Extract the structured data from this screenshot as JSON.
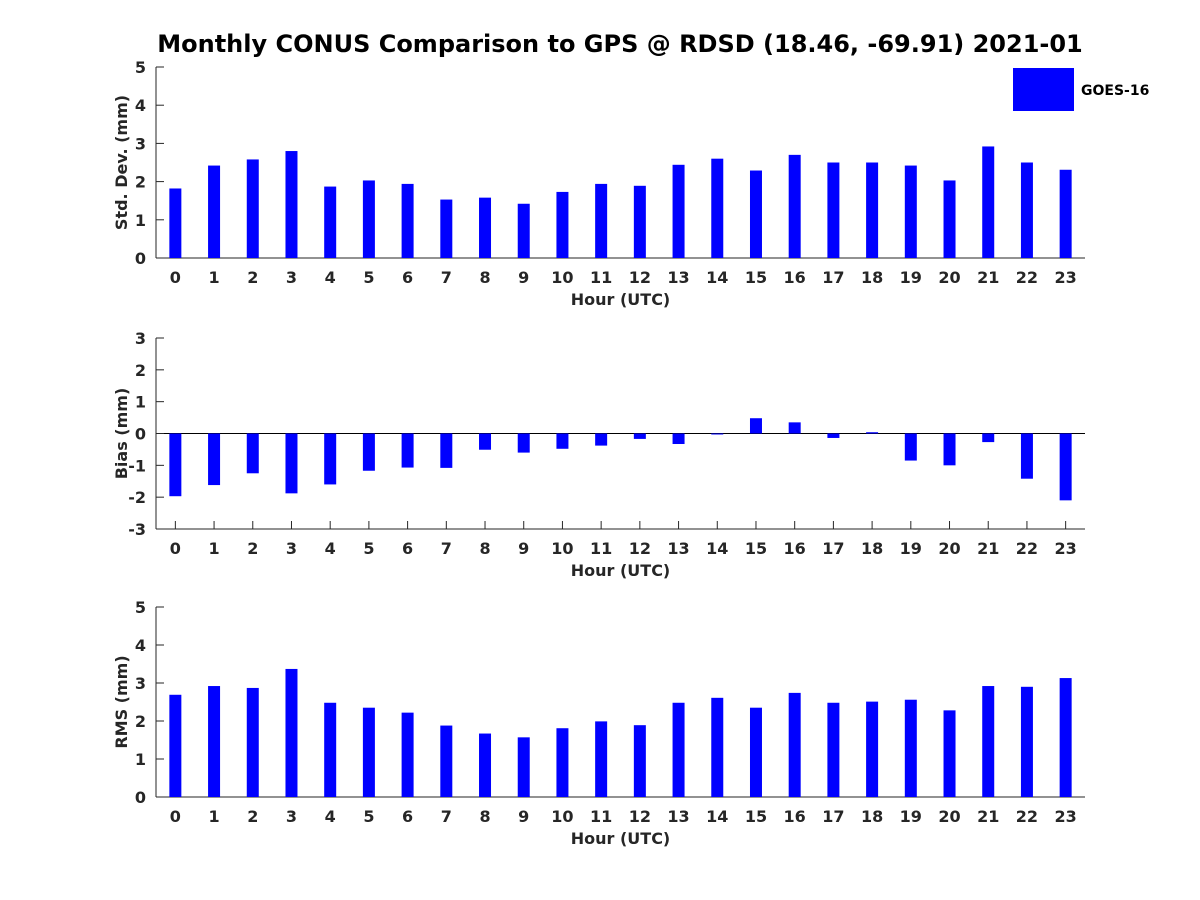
{
  "title": "Monthly CONUS Comparison to GPS @ RDSD (18.46, -69.91) 2021-01",
  "legend": {
    "label": "GOES-16",
    "color": "#0000ff",
    "placement": "top-right"
  },
  "chart_data": [
    {
      "type": "bar",
      "title": "",
      "xlabel": "Hour (UTC)",
      "ylabel": "Std. Dev. (mm)",
      "ylim": [
        0,
        5
      ],
      "yticks": [
        0,
        1,
        2,
        3,
        4,
        5
      ],
      "categories": [
        "0",
        "1",
        "2",
        "3",
        "4",
        "5",
        "6",
        "7",
        "8",
        "9",
        "10",
        "11",
        "12",
        "13",
        "14",
        "15",
        "16",
        "17",
        "18",
        "19",
        "20",
        "21",
        "22",
        "23"
      ],
      "series": [
        {
          "name": "GOES-16",
          "color": "#0000ff",
          "values": [
            1.82,
            2.42,
            2.58,
            2.8,
            1.87,
            2.03,
            1.94,
            1.53,
            1.58,
            1.42,
            1.73,
            1.94,
            1.89,
            2.44,
            2.6,
            2.29,
            2.7,
            2.5,
            2.5,
            2.42,
            2.03,
            2.92,
            2.5,
            2.31
          ]
        }
      ],
      "grid": false
    },
    {
      "type": "bar",
      "title": "",
      "xlabel": "Hour (UTC)",
      "ylabel": "Bias (mm)",
      "ylim": [
        -3,
        3
      ],
      "yticks": [
        -3,
        -2,
        -1,
        0,
        1,
        2,
        3
      ],
      "categories": [
        "0",
        "1",
        "2",
        "3",
        "4",
        "5",
        "6",
        "7",
        "8",
        "9",
        "10",
        "11",
        "12",
        "13",
        "14",
        "15",
        "16",
        "17",
        "18",
        "19",
        "20",
        "21",
        "22",
        "23"
      ],
      "series": [
        {
          "name": "GOES-16",
          "color": "#0000ff",
          "values": [
            -1.97,
            -1.62,
            -1.25,
            -1.88,
            -1.6,
            -1.17,
            -1.07,
            -1.08,
            -0.51,
            -0.6,
            -0.48,
            -0.38,
            -0.17,
            -0.33,
            -0.02,
            0.48,
            0.35,
            -0.14,
            0.04,
            -0.85,
            -1.0,
            -0.27,
            -1.42,
            -2.1
          ]
        }
      ],
      "grid": false
    },
    {
      "type": "bar",
      "title": "",
      "xlabel": "Hour (UTC)",
      "ylabel": "RMS (mm)",
      "ylim": [
        0,
        5
      ],
      "yticks": [
        0,
        1,
        2,
        3,
        4,
        5
      ],
      "categories": [
        "0",
        "1",
        "2",
        "3",
        "4",
        "5",
        "6",
        "7",
        "8",
        "9",
        "10",
        "11",
        "12",
        "13",
        "14",
        "15",
        "16",
        "17",
        "18",
        "19",
        "20",
        "21",
        "22",
        "23"
      ],
      "series": [
        {
          "name": "GOES-16",
          "color": "#0000ff",
          "values": [
            2.69,
            2.92,
            2.87,
            3.37,
            2.48,
            2.35,
            2.22,
            1.88,
            1.67,
            1.57,
            1.81,
            1.99,
            1.89,
            2.48,
            2.61,
            2.35,
            2.74,
            2.48,
            2.51,
            2.56,
            2.28,
            2.92,
            2.9,
            3.13
          ]
        }
      ],
      "grid": false
    }
  ]
}
